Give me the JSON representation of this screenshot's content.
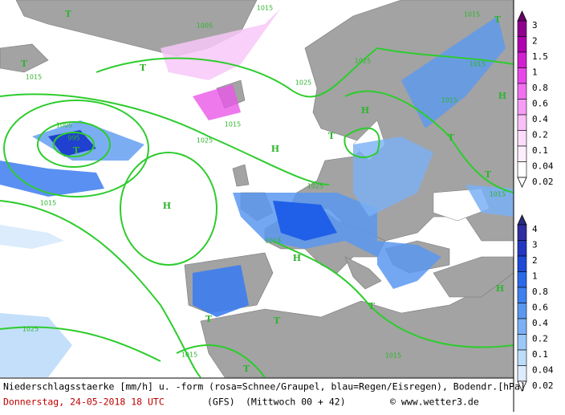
{
  "map": {
    "isobar_labels": [
      "1015",
      "1005",
      "1015",
      "1025",
      "1015",
      "1025",
      "1005",
      "995",
      "1015",
      "1025",
      "1025",
      "1015",
      "1015",
      "1025",
      "1015",
      "1015",
      "1015",
      "1015",
      "1015"
    ],
    "pressure_centers": [
      "T",
      "T",
      "T",
      "H",
      "H",
      "T",
      "T",
      "H",
      "T",
      "H",
      "T",
      "H",
      "T",
      "T",
      "T",
      "T",
      "H",
      "T"
    ]
  },
  "legend": {
    "snow": [
      "3",
      "2",
      "1.5",
      "1",
      "0.8",
      "0.6",
      "0.4",
      "0.2",
      "0.1",
      "0.04",
      "0.02"
    ],
    "rain": [
      "4",
      "3",
      "2",
      "1",
      "0.8",
      "0.6",
      "0.4",
      "0.2",
      "0.1",
      "0.04",
      "0.02"
    ]
  },
  "footer": {
    "description": "Niederschlagsstaerke [mm/h] u. -form (rosa=Schnee/Graupel, blau=Regen/Eisregen), Bodendr.[hPa]",
    "date": "Donnerstag, 24-05-2018  18 UTC",
    "model": "(GFS)",
    "run": "(Mittwoch 00 + 42)",
    "copyright": "© www.wetter3.de"
  }
}
